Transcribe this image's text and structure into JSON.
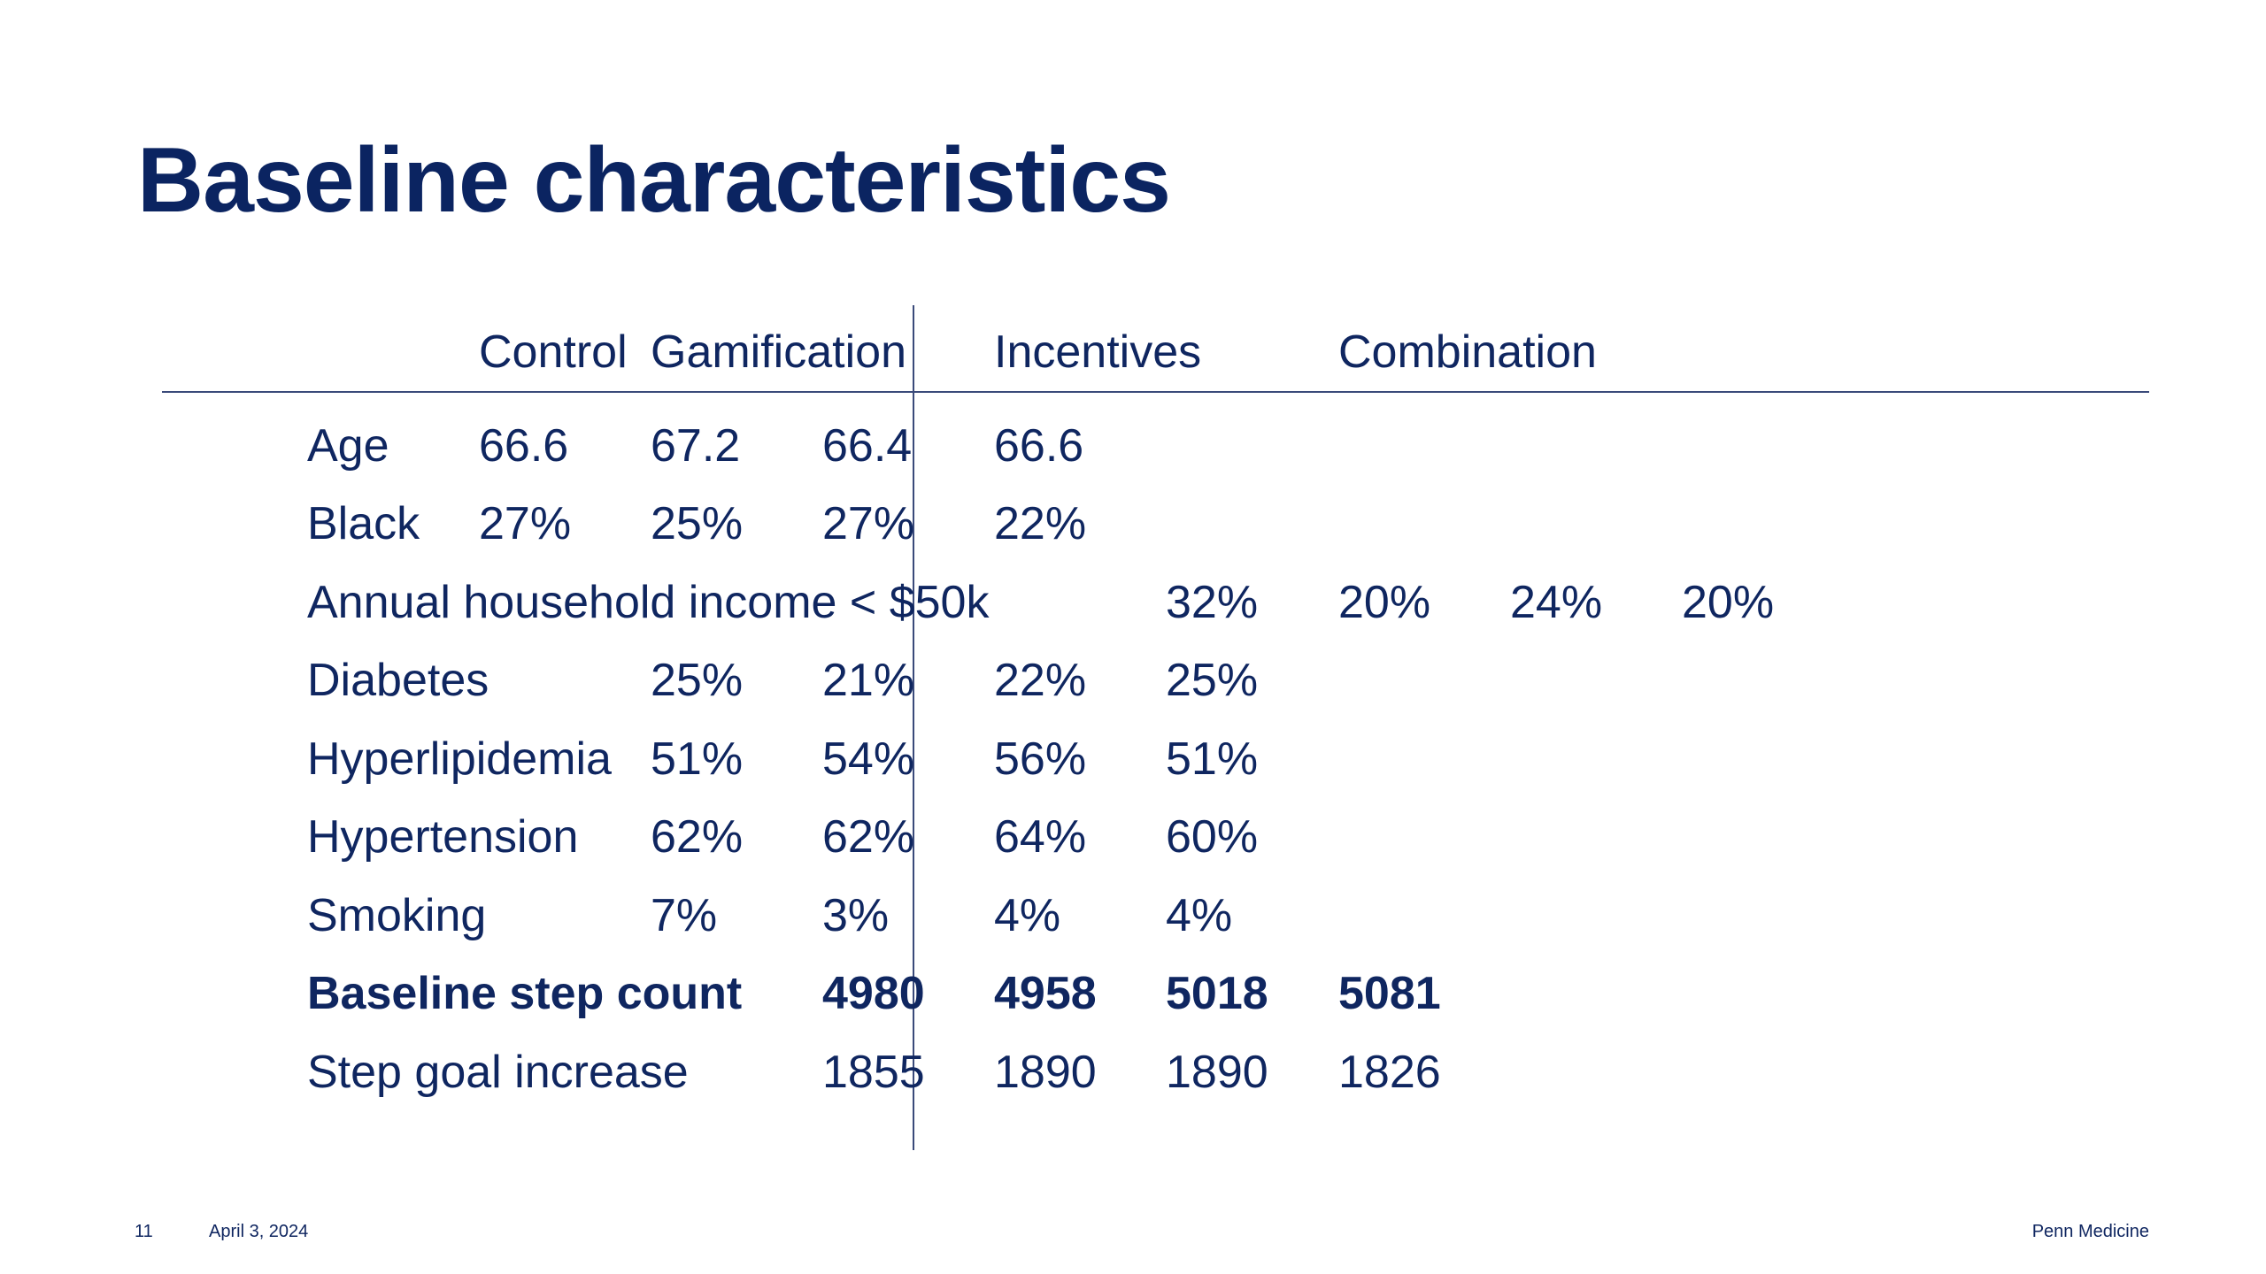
{
  "slide": {
    "title": "Baseline characteristics",
    "headers": [
      "Control",
      "Gamification",
      "Incentives",
      "Combination"
    ],
    "rows": [
      {
        "label": "Age",
        "values": [
          "66.6",
          "67.2",
          "66.4",
          "66.6"
        ]
      },
      {
        "label": "Black",
        "values": [
          "27%",
          "25%",
          "27%",
          "22%"
        ]
      },
      {
        "label": "Annual household income < $50k",
        "values": [
          "32%",
          "20%",
          "24%",
          "20%"
        ]
      },
      {
        "label": "Diabetes",
        "values": [
          "25%",
          "21%",
          "22%",
          "25%"
        ]
      },
      {
        "label": "Hyperlipidemia",
        "values": [
          "51%",
          "54%",
          "56%",
          "51%"
        ]
      },
      {
        "label": "Hypertension",
        "values": [
          "62%",
          "62%",
          "64%",
          "60%"
        ]
      },
      {
        "label": "Smoking",
        "values": [
          "7%",
          "3%",
          "4%",
          "4%"
        ]
      },
      {
        "label": "Baseline step count",
        "values": [
          "4980",
          "4958",
          "5018",
          "5081"
        ]
      },
      {
        "label": "Step goal increase",
        "values": [
          "1855",
          "1890",
          "1890",
          "1826"
        ]
      }
    ]
  },
  "footer": {
    "page_number": "11",
    "date": "April 3, 2024",
    "brand": "Penn Medicine"
  },
  "colors": {
    "text": "#0f2660",
    "title": "#0b2461",
    "rule": "#3a4a7a",
    "background": "#ffffff"
  }
}
